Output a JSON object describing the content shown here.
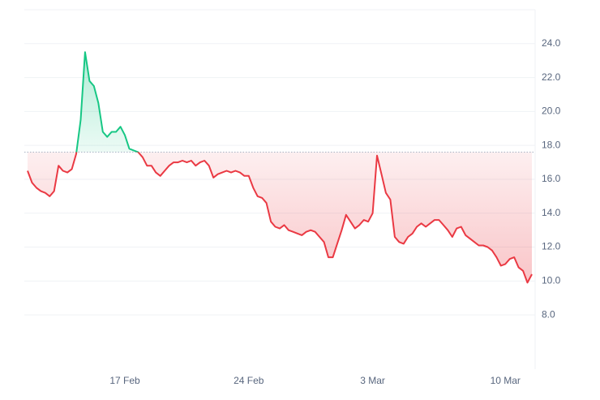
{
  "chart_data": {
    "type": "line",
    "categories": [
      null,
      null,
      null,
      null,
      null,
      null,
      null,
      null,
      null,
      null,
      null,
      null,
      null,
      null,
      null,
      null,
      null,
      null,
      null,
      null,
      null,
      null,
      "17 Feb",
      null,
      null,
      null,
      null,
      null,
      null,
      null,
      null,
      null,
      null,
      null,
      null,
      null,
      null,
      null,
      null,
      null,
      null,
      null,
      null,
      null,
      null,
      null,
      null,
      null,
      null,
      null,
      "24 Feb",
      null,
      null,
      null,
      null,
      null,
      null,
      null,
      null,
      null,
      null,
      null,
      null,
      null,
      null,
      null,
      null,
      null,
      null,
      null,
      null,
      null,
      null,
      null,
      null,
      null,
      null,
      null,
      "3 Mar",
      null,
      null,
      null,
      null,
      null,
      null,
      null,
      null,
      null,
      null,
      null,
      null,
      null,
      null,
      null,
      null,
      null,
      null,
      null,
      null,
      null,
      null,
      null,
      null,
      null,
      null,
      null,
      null,
      null,
      "10 Mar",
      null,
      null,
      null,
      null,
      null,
      null
    ],
    "values": [
      16.5,
      15.8,
      15.5,
      15.3,
      15.2,
      15.0,
      15.3,
      16.8,
      16.5,
      16.4,
      16.6,
      17.5,
      19.5,
      23.5,
      21.8,
      21.5,
      20.5,
      18.8,
      18.5,
      18.8,
      18.8,
      19.1,
      18.6,
      17.8,
      17.7,
      17.6,
      17.3,
      16.8,
      16.8,
      16.4,
      16.2,
      16.5,
      16.8,
      17.0,
      17.0,
      17.1,
      17.0,
      17.1,
      16.8,
      17.0,
      17.1,
      16.8,
      16.1,
      16.3,
      16.4,
      16.5,
      16.4,
      16.5,
      16.4,
      16.2,
      16.2,
      15.5,
      15.0,
      14.9,
      14.6,
      13.5,
      13.2,
      13.1,
      13.3,
      13.0,
      12.9,
      12.8,
      12.7,
      12.9,
      13.0,
      12.9,
      12.6,
      12.3,
      11.4,
      11.4,
      12.2,
      13.0,
      13.9,
      13.5,
      13.1,
      13.3,
      13.6,
      13.5,
      14.0,
      17.4,
      16.3,
      15.2,
      14.8,
      12.6,
      12.3,
      12.2,
      12.6,
      12.8,
      13.2,
      13.4,
      13.2,
      13.4,
      13.6,
      13.6,
      13.3,
      13.0,
      12.6,
      13.1,
      13.2,
      12.7,
      12.5,
      12.3,
      12.1,
      12.1,
      12.0,
      11.8,
      11.4,
      10.9,
      11.0,
      11.3,
      11.4,
      10.8,
      10.6,
      9.9,
      10.4
    ],
    "baseline": 17.6,
    "up_color": "#16c784",
    "down_color": "#ea3943",
    "ylim": [
      4.8,
      26
    ],
    "yticks": [
      {
        "value": 8,
        "label": "8.0"
      },
      {
        "value": 10,
        "label": "10.0"
      },
      {
        "value": 12,
        "label": "12.0"
      },
      {
        "value": 14,
        "label": "14.0"
      },
      {
        "value": 16,
        "label": "16.0"
      },
      {
        "value": 18,
        "label": "18.0"
      },
      {
        "value": 20,
        "label": "20.0"
      },
      {
        "value": 22,
        "label": "22.0"
      },
      {
        "value": 24,
        "label": "24.0"
      }
    ],
    "grid": true
  }
}
